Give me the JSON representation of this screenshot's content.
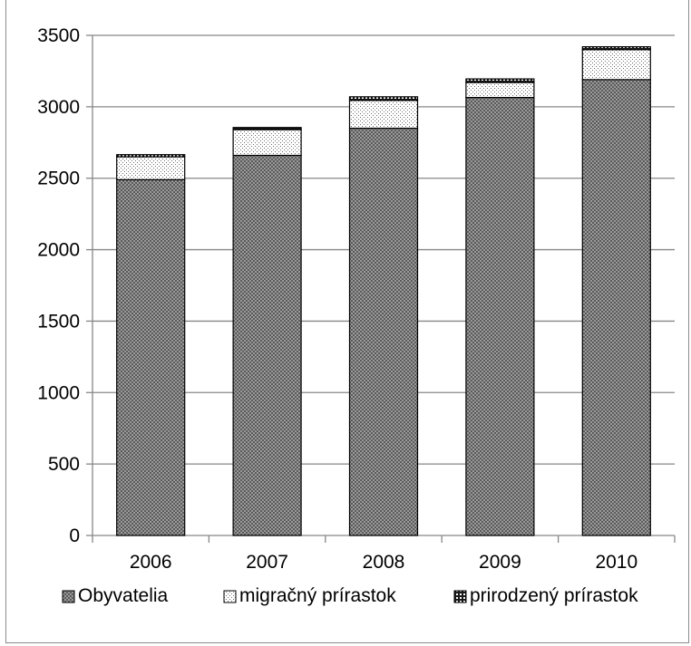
{
  "chart_data": {
    "type": "bar",
    "stacked": true,
    "title": "",
    "xlabel": "",
    "ylabel": "",
    "categories": [
      "2006",
      "2007",
      "2008",
      "2009",
      "2010"
    ],
    "ylim": [
      0,
      3500
    ],
    "yticks": [
      0,
      500,
      1000,
      1500,
      2000,
      2500,
      3000,
      3500
    ],
    "grid": true,
    "legend_position": "bottom",
    "series": [
      {
        "name": "Obyvatelia",
        "values": [
          2490,
          2660,
          2850,
          3065,
          3190
        ],
        "pattern": "checker-grey"
      },
      {
        "name": "migračný prírastok",
        "values": [
          160,
          180,
          195,
          105,
          210
        ],
        "pattern": "dotted-light"
      },
      {
        "name": "prirodzený prírastok",
        "values": [
          15,
          15,
          25,
          25,
          20
        ],
        "pattern": "checker-dark"
      }
    ]
  },
  "colors": {
    "gridline": "#878787",
    "axis": "#878787",
    "bar_outline": "#000000",
    "frame": "#8c8c8c"
  }
}
